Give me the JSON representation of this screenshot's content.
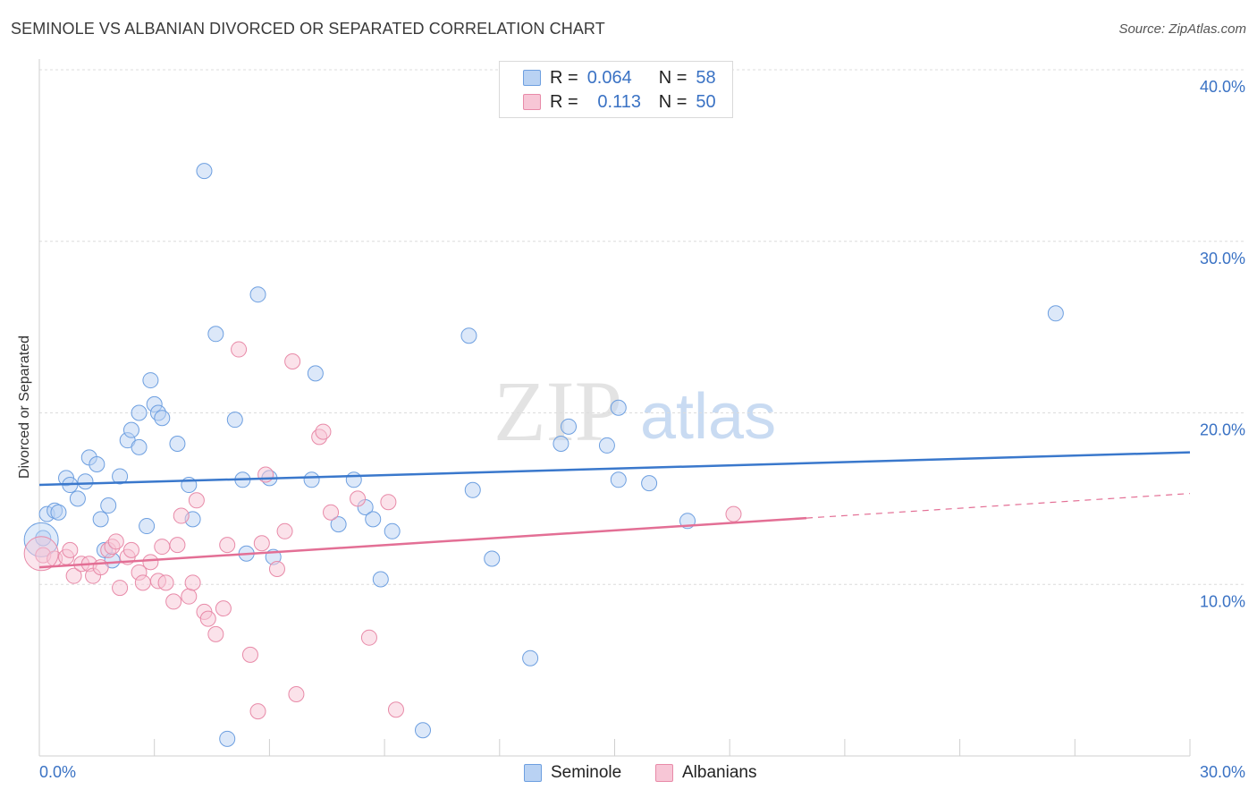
{
  "title": "SEMINOLE VS ALBANIAN DIVORCED OR SEPARATED CORRELATION CHART",
  "source": "Source: ZipAtlas.com",
  "watermark": {
    "zip": "ZIP",
    "atlas": "atlas"
  },
  "legend": {
    "rows": [
      {
        "r_label": "R =",
        "r_value": "0.064",
        "n_label": "N =",
        "n_value": "58",
        "color": "#6d9fe0",
        "fill": "#b9d2f3"
      },
      {
        "r_label": "R =",
        "r_value": "0.113",
        "n_label": "N =",
        "n_value": "50",
        "color": "#e88aa8",
        "fill": "#f7c6d6"
      }
    ]
  },
  "bottom_legend": [
    {
      "label": "Seminole",
      "color": "#6d9fe0",
      "fill": "#b9d2f3"
    },
    {
      "label": "Albanians",
      "color": "#e88aa8",
      "fill": "#f7c6d6"
    }
  ],
  "chart_data": {
    "type": "scatter",
    "title": "SEMINOLE VS ALBANIAN DIVORCED OR SEPARATED CORRELATION CHART",
    "xlabel": "",
    "ylabel": "Divorced or Separated",
    "xlim": [
      0,
      30
    ],
    "ylim": [
      0,
      40
    ],
    "x_ticks": [
      {
        "value": 0,
        "label": "0.0%"
      },
      {
        "value": 30,
        "label": "30.0%"
      }
    ],
    "y_ticks": [
      {
        "value": 10,
        "label": "10.0%"
      },
      {
        "value": 20,
        "label": "20.0%"
      },
      {
        "value": 30,
        "label": "30.0%"
      },
      {
        "value": 40,
        "label": "40.0%"
      }
    ],
    "grid": true,
    "legend_position": "top-center",
    "series": [
      {
        "name": "Seminole",
        "color": "#3a78cc",
        "fill": "#b9d2f3",
        "stroke": "#6d9fe0",
        "trend": {
          "x": [
            0,
            30
          ],
          "y": [
            15.8,
            17.7
          ],
          "dashed_from": null
        },
        "points": [
          [
            0.1,
            12.7
          ],
          [
            0.2,
            14.1
          ],
          [
            0.4,
            14.3
          ],
          [
            0.5,
            14.2
          ],
          [
            0.7,
            16.2
          ],
          [
            0.8,
            15.8
          ],
          [
            1.0,
            15.0
          ],
          [
            1.2,
            16.0
          ],
          [
            1.3,
            17.4
          ],
          [
            1.5,
            17.0
          ],
          [
            1.6,
            13.8
          ],
          [
            1.7,
            12.0
          ],
          [
            1.8,
            14.6
          ],
          [
            1.9,
            11.4
          ],
          [
            2.1,
            16.3
          ],
          [
            2.3,
            18.4
          ],
          [
            2.4,
            19.0
          ],
          [
            2.6,
            18.0
          ],
          [
            2.6,
            20.0
          ],
          [
            2.8,
            13.4
          ],
          [
            2.9,
            21.9
          ],
          [
            3.0,
            20.5
          ],
          [
            3.1,
            20.0
          ],
          [
            3.2,
            19.7
          ],
          [
            3.6,
            18.2
          ],
          [
            3.9,
            15.8
          ],
          [
            4.0,
            13.8
          ],
          [
            4.3,
            34.1
          ],
          [
            4.6,
            24.6
          ],
          [
            4.9,
            1.0
          ],
          [
            5.1,
            19.6
          ],
          [
            5.3,
            16.1
          ],
          [
            5.4,
            11.8
          ],
          [
            5.7,
            26.9
          ],
          [
            6.0,
            16.2
          ],
          [
            6.1,
            11.6
          ],
          [
            7.1,
            16.1
          ],
          [
            7.2,
            22.3
          ],
          [
            7.8,
            13.5
          ],
          [
            8.2,
            16.1
          ],
          [
            8.5,
            14.5
          ],
          [
            8.7,
            13.8
          ],
          [
            8.9,
            10.3
          ],
          [
            9.2,
            13.1
          ],
          [
            10.0,
            1.5
          ],
          [
            11.2,
            24.5
          ],
          [
            11.3,
            15.5
          ],
          [
            11.8,
            11.5
          ],
          [
            12.8,
            5.7
          ],
          [
            13.6,
            18.2
          ],
          [
            13.8,
            19.2
          ],
          [
            14.8,
            18.1
          ],
          [
            15.1,
            16.1
          ],
          [
            15.1,
            20.3
          ],
          [
            15.9,
            15.9
          ],
          [
            16.9,
            13.7
          ],
          [
            26.5,
            25.8
          ],
          [
            0.05,
            12.6
          ]
        ],
        "big_points": [
          [
            0.05,
            12.6
          ]
        ]
      },
      {
        "name": "Albanians",
        "color": "#e36f95",
        "fill": "#f7c6d6",
        "stroke": "#e88aa8",
        "trend": {
          "x": [
            0,
            30
          ],
          "y": [
            11.0,
            15.3
          ],
          "dashed_from": 20.0
        },
        "points": [
          [
            0.1,
            11.7
          ],
          [
            0.4,
            11.5
          ],
          [
            0.7,
            11.6
          ],
          [
            0.8,
            12.0
          ],
          [
            0.9,
            10.5
          ],
          [
            1.1,
            11.2
          ],
          [
            1.3,
            11.2
          ],
          [
            1.4,
            10.5
          ],
          [
            1.6,
            11.0
          ],
          [
            1.8,
            12.0
          ],
          [
            1.9,
            12.2
          ],
          [
            2.0,
            12.5
          ],
          [
            2.1,
            9.8
          ],
          [
            2.3,
            11.6
          ],
          [
            2.4,
            12.0
          ],
          [
            2.6,
            10.7
          ],
          [
            2.7,
            10.1
          ],
          [
            2.9,
            11.3
          ],
          [
            3.1,
            10.2
          ],
          [
            3.2,
            12.2
          ],
          [
            3.3,
            10.1
          ],
          [
            3.5,
            9.0
          ],
          [
            3.6,
            12.3
          ],
          [
            3.7,
            14.0
          ],
          [
            3.9,
            9.3
          ],
          [
            4.0,
            10.1
          ],
          [
            4.1,
            14.9
          ],
          [
            4.3,
            8.4
          ],
          [
            4.4,
            8.0
          ],
          [
            4.6,
            7.1
          ],
          [
            4.8,
            8.6
          ],
          [
            4.9,
            12.3
          ],
          [
            5.2,
            23.7
          ],
          [
            5.5,
            5.9
          ],
          [
            5.7,
            2.6
          ],
          [
            5.8,
            12.4
          ],
          [
            5.9,
            16.4
          ],
          [
            6.2,
            10.9
          ],
          [
            6.4,
            13.1
          ],
          [
            6.6,
            23.0
          ],
          [
            6.7,
            3.6
          ],
          [
            7.3,
            18.6
          ],
          [
            7.4,
            18.9
          ],
          [
            7.6,
            14.2
          ],
          [
            8.3,
            15.0
          ],
          [
            8.6,
            6.9
          ],
          [
            9.1,
            14.8
          ],
          [
            9.3,
            2.7
          ],
          [
            18.1,
            14.1
          ],
          [
            0.05,
            11.8
          ]
        ],
        "big_points": [
          [
            0.05,
            11.8
          ]
        ]
      }
    ]
  }
}
